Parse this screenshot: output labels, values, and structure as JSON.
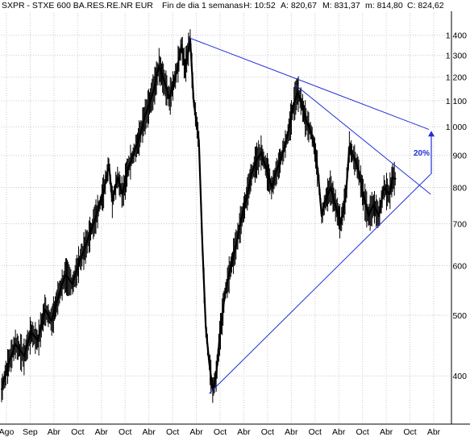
{
  "header": {
    "ticker": "SXPR - STXE 600 BA.RES.RE.NR EUR",
    "period": "Fin de dia 1 semanas",
    "high_label": "H: 10:52",
    "a_label": "A: 820,67",
    "m_label": "M: 831,37",
    "min_label": "m: 814,80",
    "close_label": "C: 824,62"
  },
  "colors": {
    "price": "#000000",
    "trendline": "#1f2fd6",
    "annotation": "#1f2fd6",
    "grid": "#c8c8c8"
  },
  "annotation": {
    "text": "20%",
    "icon": "arrow-up-icon"
  },
  "chart_data": {
    "type": "line",
    "style": "ohlc-bars",
    "yscale": "log",
    "ylim": [
      335,
      1520
    ],
    "yticks": [
      400,
      500,
      600,
      700,
      800,
      900,
      1000,
      1100,
      1200,
      1300,
      1400
    ],
    "ytick_labels": [
      "400",
      "500",
      "600",
      "700",
      "800",
      "900",
      "1.000",
      "1.100",
      "1.200",
      "1.300",
      "1.400"
    ],
    "xticks": [
      "Ago",
      "Sep",
      "Abr",
      "Oct",
      "Abr",
      "Oct",
      "Abr",
      "Oct",
      "Abr",
      "Oct",
      "Abr",
      "Oct",
      "Abr",
      "Oct",
      "Abr",
      "Oct",
      "Abr",
      "Oct",
      "Abr"
    ],
    "grid": true,
    "series": [
      {
        "values": [
          [
            0,
            380
          ],
          [
            4,
            420
          ],
          [
            8,
            450
          ],
          [
            13,
            430
          ],
          [
            17,
            470
          ],
          [
            21,
            455
          ],
          [
            25,
            510
          ],
          [
            29,
            490
          ],
          [
            33,
            540
          ],
          [
            37,
            580
          ],
          [
            41,
            560
          ],
          [
            45,
            610
          ],
          [
            49,
            650
          ],
          [
            53,
            700
          ],
          [
            56,
            740
          ],
          [
            59,
            790
          ],
          [
            62,
            870
          ],
          [
            64,
            760
          ],
          [
            67,
            830
          ],
          [
            70,
            780
          ],
          [
            73,
            860
          ],
          [
            76,
            900
          ],
          [
            79,
            950
          ],
          [
            82,
            1020
          ],
          [
            85,
            1080
          ],
          [
            88,
            1150
          ],
          [
            91,
            1250
          ],
          [
            94,
            1180
          ],
          [
            97,
            1110
          ],
          [
            101,
            1220
          ],
          [
            104,
            1350
          ],
          [
            106,
            1240
          ],
          [
            109,
            1380
          ],
          [
            111,
            1100
          ],
          [
            114,
            950
          ],
          [
            116,
            650
          ],
          [
            118,
            480
          ],
          [
            120,
            420
          ],
          [
            122,
            380
          ],
          [
            124,
            400
          ],
          [
            126,
            460
          ],
          [
            129,
            540
          ],
          [
            132,
            590
          ],
          [
            135,
            640
          ],
          [
            138,
            700
          ],
          [
            141,
            760
          ],
          [
            144,
            830
          ],
          [
            147,
            880
          ],
          [
            150,
            910
          ],
          [
            153,
            860
          ],
          [
            156,
            800
          ],
          [
            159,
            850
          ],
          [
            162,
            900
          ],
          [
            165,
            960
          ],
          [
            167,
            1020
          ],
          [
            169,
            1090
          ],
          [
            171,
            1140
          ],
          [
            173,
            1100
          ],
          [
            176,
            1020
          ],
          [
            179,
            980
          ],
          [
            181,
            920
          ],
          [
            183,
            840
          ],
          [
            185,
            720
          ],
          [
            187,
            760
          ],
          [
            190,
            800
          ],
          [
            193,
            750
          ],
          [
            196,
            700
          ],
          [
            199,
            780
          ],
          [
            201,
            930
          ],
          [
            203,
            900
          ],
          [
            206,
            860
          ],
          [
            209,
            780
          ],
          [
            212,
            720
          ],
          [
            215,
            750
          ],
          [
            218,
            720
          ],
          [
            221,
            800
          ],
          [
            224,
            780
          ],
          [
            226,
            830
          ],
          [
            228,
            825
          ]
        ]
      }
    ],
    "trendlines": [
      {
        "name": "upper-resistance",
        "points": [
          [
            109,
            1385
          ],
          [
            247,
            990
          ]
        ]
      },
      {
        "name": "descending-resistance",
        "points": [
          [
            170,
            1165
          ],
          [
            248,
            780
          ]
        ]
      },
      {
        "name": "ascending-support",
        "points": [
          [
            120,
            375
          ],
          [
            248,
            840
          ]
        ]
      }
    ],
    "annotations": [
      {
        "text": "20%",
        "arrow_from": 840,
        "arrow_to": 985
      }
    ]
  }
}
